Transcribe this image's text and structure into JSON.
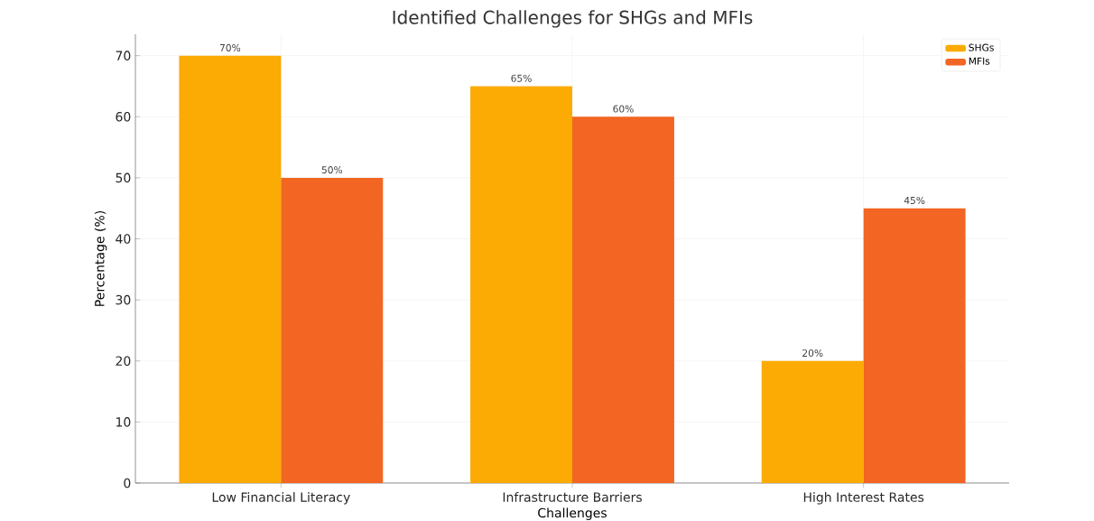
{
  "chart_data": {
    "type": "bar",
    "title": "Identified Challenges for SHGs and MFIs",
    "xlabel": "Challenges",
    "ylabel": "Percentage (%)",
    "categories": [
      "Low Financial Literacy",
      "Infrastructure Barriers",
      "High Interest Rates"
    ],
    "series": [
      {
        "name": "SHGs",
        "color": "#fbab04",
        "values": [
          70,
          65,
          20
        ],
        "value_labels": [
          "70%",
          "65%",
          "20%"
        ]
      },
      {
        "name": "MFIs",
        "color": "#f26522",
        "values": [
          50,
          60,
          45
        ],
        "value_labels": [
          "50%",
          "60%",
          "45%"
        ]
      }
    ],
    "ylim": [
      0,
      73.5
    ],
    "yticks": [
      0,
      10,
      20,
      30,
      40,
      50,
      60,
      70
    ],
    "grid": true,
    "legend": "top right"
  }
}
